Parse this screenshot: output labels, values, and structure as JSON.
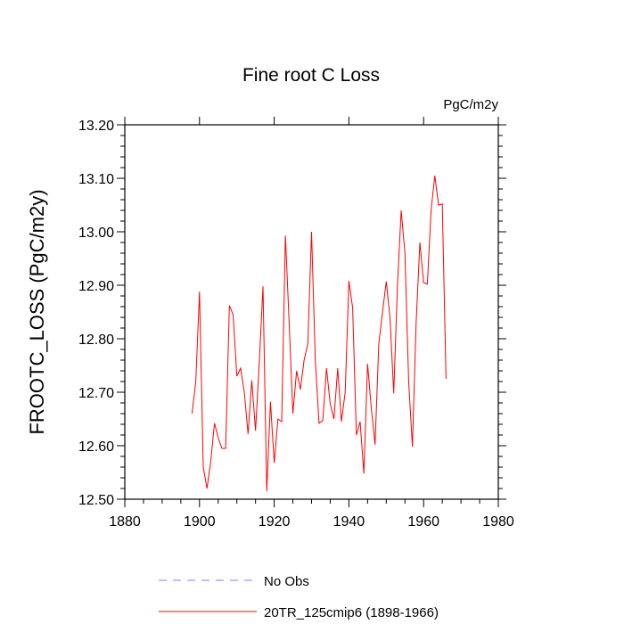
{
  "chart_data": {
    "type": "line",
    "title": "Fine root C Loss",
    "units": "PgC/m2y",
    "xlabel": "",
    "ylabel": "FROOTC_LOSS  (PgC/m2y)",
    "xlim": [
      1880,
      1980
    ],
    "ylim": [
      12.5,
      13.2
    ],
    "x_ticks": [
      1880,
      1900,
      1920,
      1940,
      1960,
      1980
    ],
    "y_ticks": [
      12.5,
      12.6,
      12.7,
      12.8,
      12.9,
      13.0,
      13.1,
      13.2
    ],
    "y_tick_labels": [
      "12.50",
      "12.60",
      "12.70",
      "12.80",
      "12.90",
      "13.00",
      "13.10",
      "13.20"
    ],
    "grid": false,
    "legend_position": "bottom-left",
    "series": [
      {
        "name": "20TR_125cmip6 (1898-1966)",
        "color": "#ff0000",
        "style": "solid",
        "x": [
          1898,
          1899,
          1900,
          1901,
          1902,
          1903,
          1904,
          1905,
          1906,
          1907,
          1908,
          1909,
          1910,
          1911,
          1912,
          1913,
          1914,
          1915,
          1916,
          1917,
          1918,
          1919,
          1920,
          1921,
          1922,
          1923,
          1924,
          1925,
          1926,
          1927,
          1928,
          1929,
          1930,
          1931,
          1932,
          1933,
          1934,
          1935,
          1936,
          1937,
          1938,
          1939,
          1940,
          1941,
          1942,
          1943,
          1944,
          1945,
          1946,
          1947,
          1948,
          1949,
          1950,
          1951,
          1952,
          1953,
          1954,
          1955,
          1956,
          1957,
          1958,
          1959,
          1960,
          1961,
          1962,
          1963,
          1964,
          1965,
          1966
        ],
        "values": [
          12.66,
          12.72,
          12.888,
          12.56,
          12.52,
          12.57,
          12.642,
          12.615,
          12.595,
          12.595,
          12.862,
          12.845,
          12.73,
          12.745,
          12.7,
          12.622,
          12.722,
          12.628,
          12.755,
          12.898,
          12.515,
          12.682,
          12.568,
          12.65,
          12.645,
          12.993,
          12.83,
          12.66,
          12.74,
          12.705,
          12.76,
          12.79,
          13.0,
          12.76,
          12.642,
          12.647,
          12.745,
          12.678,
          12.65,
          12.745,
          12.645,
          12.7,
          12.908,
          12.858,
          12.62,
          12.645,
          12.548,
          12.753,
          12.67,
          12.602,
          12.79,
          12.85,
          12.907,
          12.84,
          12.698,
          12.9,
          13.04,
          12.96,
          12.72,
          12.598,
          12.83,
          12.98,
          12.905,
          12.902,
          13.04,
          13.105,
          13.05,
          13.052,
          12.725
        ]
      },
      {
        "name": "No Obs",
        "color": "#8080ff",
        "style": "dashed",
        "x": [],
        "values": []
      }
    ]
  }
}
